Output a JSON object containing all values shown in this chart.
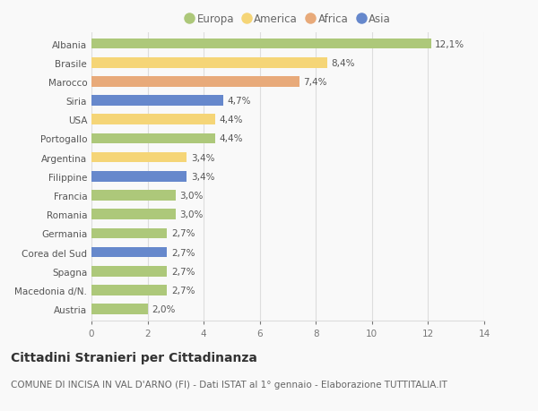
{
  "countries": [
    "Albania",
    "Brasile",
    "Marocco",
    "Siria",
    "USA",
    "Portogallo",
    "Argentina",
    "Filippine",
    "Francia",
    "Romania",
    "Germania",
    "Corea del Sud",
    "Spagna",
    "Macedonia d/N.",
    "Austria"
  ],
  "values": [
    12.1,
    8.4,
    7.4,
    4.7,
    4.4,
    4.4,
    3.4,
    3.4,
    3.0,
    3.0,
    2.7,
    2.7,
    2.7,
    2.7,
    2.0
  ],
  "labels": [
    "12,1%",
    "8,4%",
    "7,4%",
    "4,7%",
    "4,4%",
    "4,4%",
    "3,4%",
    "3,4%",
    "3,0%",
    "3,0%",
    "2,7%",
    "2,7%",
    "2,7%",
    "2,7%",
    "2,0%"
  ],
  "continents": [
    "Europa",
    "America",
    "Africa",
    "Asia",
    "America",
    "Europa",
    "America",
    "Asia",
    "Europa",
    "Europa",
    "Europa",
    "Asia",
    "Europa",
    "Europa",
    "Europa"
  ],
  "colors": {
    "Europa": "#adc87a",
    "America": "#f5d577",
    "Africa": "#e8aa7a",
    "Asia": "#6688cc"
  },
  "xlim": [
    0,
    14
  ],
  "xticks": [
    0,
    2,
    4,
    6,
    8,
    10,
    12,
    14
  ],
  "title": "Cittadini Stranieri per Cittadinanza",
  "subtitle": "COMUNE DI INCISA IN VAL D'ARNO (FI) - Dati ISTAT al 1° gennaio - Elaborazione TUTTITALIA.IT",
  "background_color": "#f9f9f9",
  "grid_color": "#dddddd",
  "bar_height": 0.55,
  "title_fontsize": 10,
  "subtitle_fontsize": 7.5,
  "label_fontsize": 7.5,
  "tick_fontsize": 7.5,
  "legend_fontsize": 8.5
}
